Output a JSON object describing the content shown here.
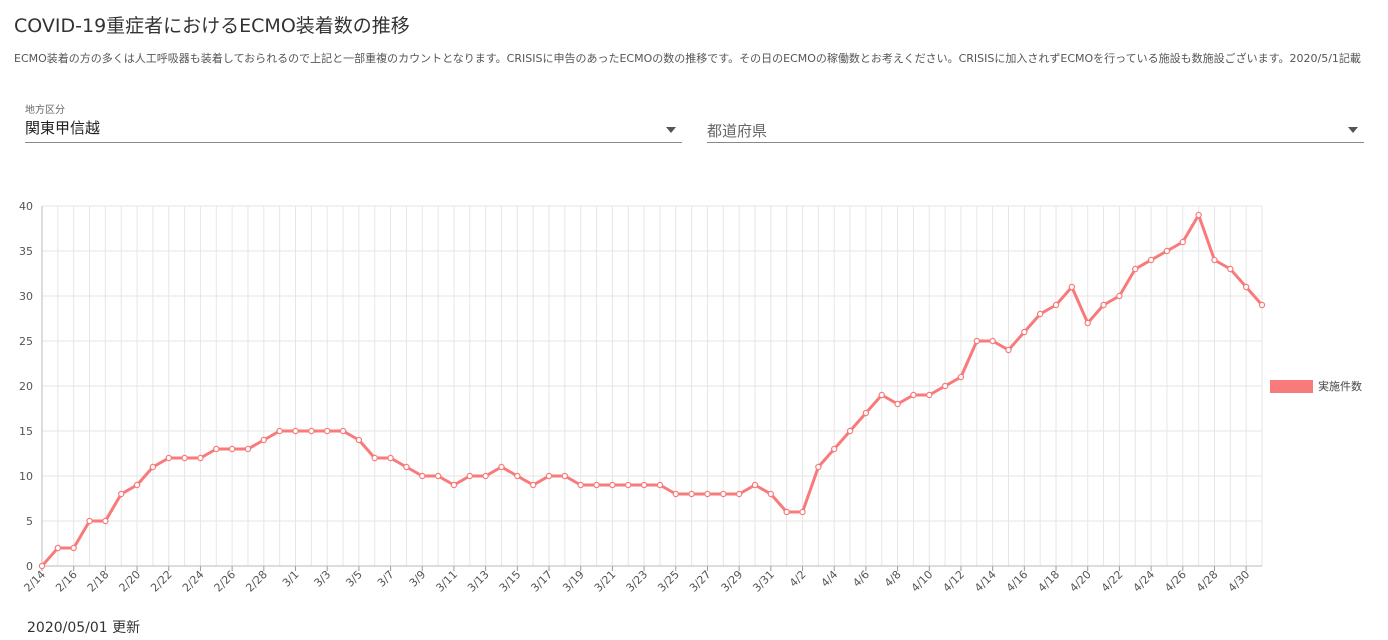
{
  "header": {
    "title": "COVID-19重症者におけるECMO装着数の推移",
    "description": "ECMO装着の方の多くは人工呼吸器も装着しておられるので上記と一部重複のカウントとなります。CRISISに申告のあったECMOの数の推移です。その日のECMOの稼働数とお考えください。CRISISに加入されずECMOを行っている施設も数施設ございます。2020/5/1記載"
  },
  "filters": {
    "region": {
      "label": "地方区分",
      "value": "関東甲信越"
    },
    "prefecture": {
      "placeholder": "都道府県"
    }
  },
  "footer": {
    "updated": "2020/05/01 更新"
  },
  "colors": {
    "series": "#f97a7a",
    "grid": "#e6e6e6"
  },
  "chart_data": {
    "type": "line",
    "title": "",
    "xlabel": "",
    "ylabel": "",
    "ylim": [
      0,
      40
    ],
    "yticks": [
      0,
      5,
      10,
      15,
      20,
      25,
      30,
      35,
      40
    ],
    "grid": true,
    "legend_position": "right",
    "x": [
      "2/14",
      "2/15",
      "2/16",
      "2/17",
      "2/18",
      "2/19",
      "2/20",
      "2/21",
      "2/22",
      "2/23",
      "2/24",
      "2/25",
      "2/26",
      "2/27",
      "2/28",
      "2/29",
      "3/1",
      "3/2",
      "3/3",
      "3/4",
      "3/5",
      "3/6",
      "3/7",
      "3/8",
      "3/9",
      "3/10",
      "3/11",
      "3/12",
      "3/13",
      "3/14",
      "3/15",
      "3/16",
      "3/17",
      "3/18",
      "3/19",
      "3/20",
      "3/21",
      "3/22",
      "3/23",
      "3/24",
      "3/25",
      "3/26",
      "3/27",
      "3/28",
      "3/29",
      "3/30",
      "3/31",
      "4/1",
      "4/2",
      "4/3",
      "4/4",
      "4/5",
      "4/6",
      "4/7",
      "4/8",
      "4/9",
      "4/10",
      "4/11",
      "4/12",
      "4/13",
      "4/14",
      "4/15",
      "4/16",
      "4/17",
      "4/18",
      "4/19",
      "4/20",
      "4/21",
      "4/22",
      "4/23",
      "4/24",
      "4/25",
      "4/26",
      "4/27",
      "4/28",
      "4/29",
      "4/30",
      "5/1"
    ],
    "x_tick_labels": [
      "2/14",
      "2/16",
      "2/18",
      "2/20",
      "2/22",
      "2/24",
      "2/26",
      "2/28",
      "3/1",
      "3/3",
      "3/5",
      "3/7",
      "3/9",
      "3/11",
      "3/13",
      "3/15",
      "3/17",
      "3/19",
      "3/21",
      "3/23",
      "3/25",
      "3/27",
      "3/29",
      "3/31",
      "4/2",
      "4/4",
      "4/6",
      "4/8",
      "4/10",
      "4/12",
      "4/14",
      "4/16",
      "4/18",
      "4/20",
      "4/22",
      "4/24",
      "4/26",
      "4/28",
      "4/30"
    ],
    "series": [
      {
        "name": "実施件数",
        "color": "#f97a7a",
        "values": [
          0,
          2,
          2,
          5,
          5,
          8,
          9,
          11,
          12,
          12,
          12,
          13,
          13,
          13,
          14,
          15,
          15,
          15,
          15,
          15,
          14,
          12,
          12,
          11,
          10,
          10,
          9,
          10,
          10,
          11,
          10,
          9,
          10,
          10,
          9,
          9,
          9,
          9,
          9,
          9,
          8,
          8,
          8,
          8,
          8,
          9,
          8,
          6,
          6,
          11,
          13,
          15,
          17,
          19,
          18,
          19,
          19,
          20,
          21,
          25,
          25,
          24,
          26,
          28,
          29,
          31,
          27,
          29,
          30,
          33,
          34,
          35,
          36,
          39,
          34,
          33,
          31,
          29
        ]
      }
    ]
  }
}
